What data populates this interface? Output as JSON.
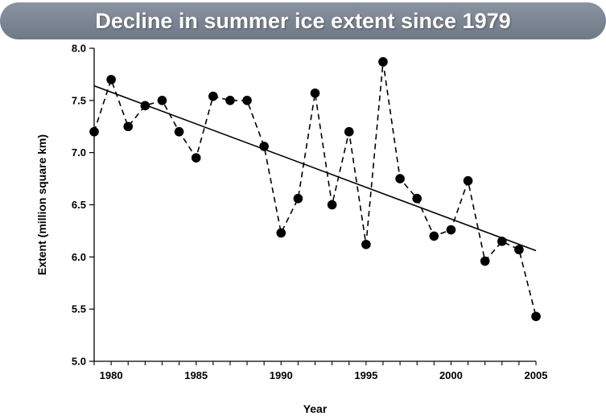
{
  "chart_data": {
    "type": "line",
    "title": "Decline in summer ice extent since 1979",
    "xlabel": "Year",
    "ylabel": "Extent (million square km)",
    "xlim": [
      1979,
      2005
    ],
    "ylim": [
      5.0,
      8.0
    ],
    "xticks": [
      1980,
      1985,
      1990,
      1995,
      2000,
      2005
    ],
    "yticks": [
      "5.0",
      "5.5",
      "6.0",
      "6.5",
      "7.0",
      "7.5",
      "8.0"
    ],
    "grid": false,
    "series": [
      {
        "style": "dashed-with-markers",
        "x": [
          1979,
          1980,
          1981,
          1982,
          1983,
          1984,
          1985,
          1986,
          1987,
          1988,
          1989,
          1990,
          1991,
          1992,
          1993,
          1994,
          1995,
          1996,
          1997,
          1998,
          1999,
          2000,
          2001,
          2002,
          2003,
          2004,
          2005
        ],
        "y": [
          7.2,
          7.7,
          7.25,
          7.45,
          7.5,
          7.2,
          6.95,
          7.54,
          7.5,
          7.5,
          7.06,
          6.23,
          6.56,
          7.57,
          6.5,
          7.2,
          6.12,
          7.87,
          6.75,
          6.56,
          6.2,
          6.26,
          6.73,
          5.96,
          6.15,
          6.07,
          5.43
        ]
      },
      {
        "style": "trend-line",
        "x": [
          1979,
          2005
        ],
        "y": [
          7.64,
          6.06
        ]
      }
    ],
    "colors": {
      "banner": "#7a8391",
      "line": "#000000",
      "marker": "#000000"
    }
  }
}
